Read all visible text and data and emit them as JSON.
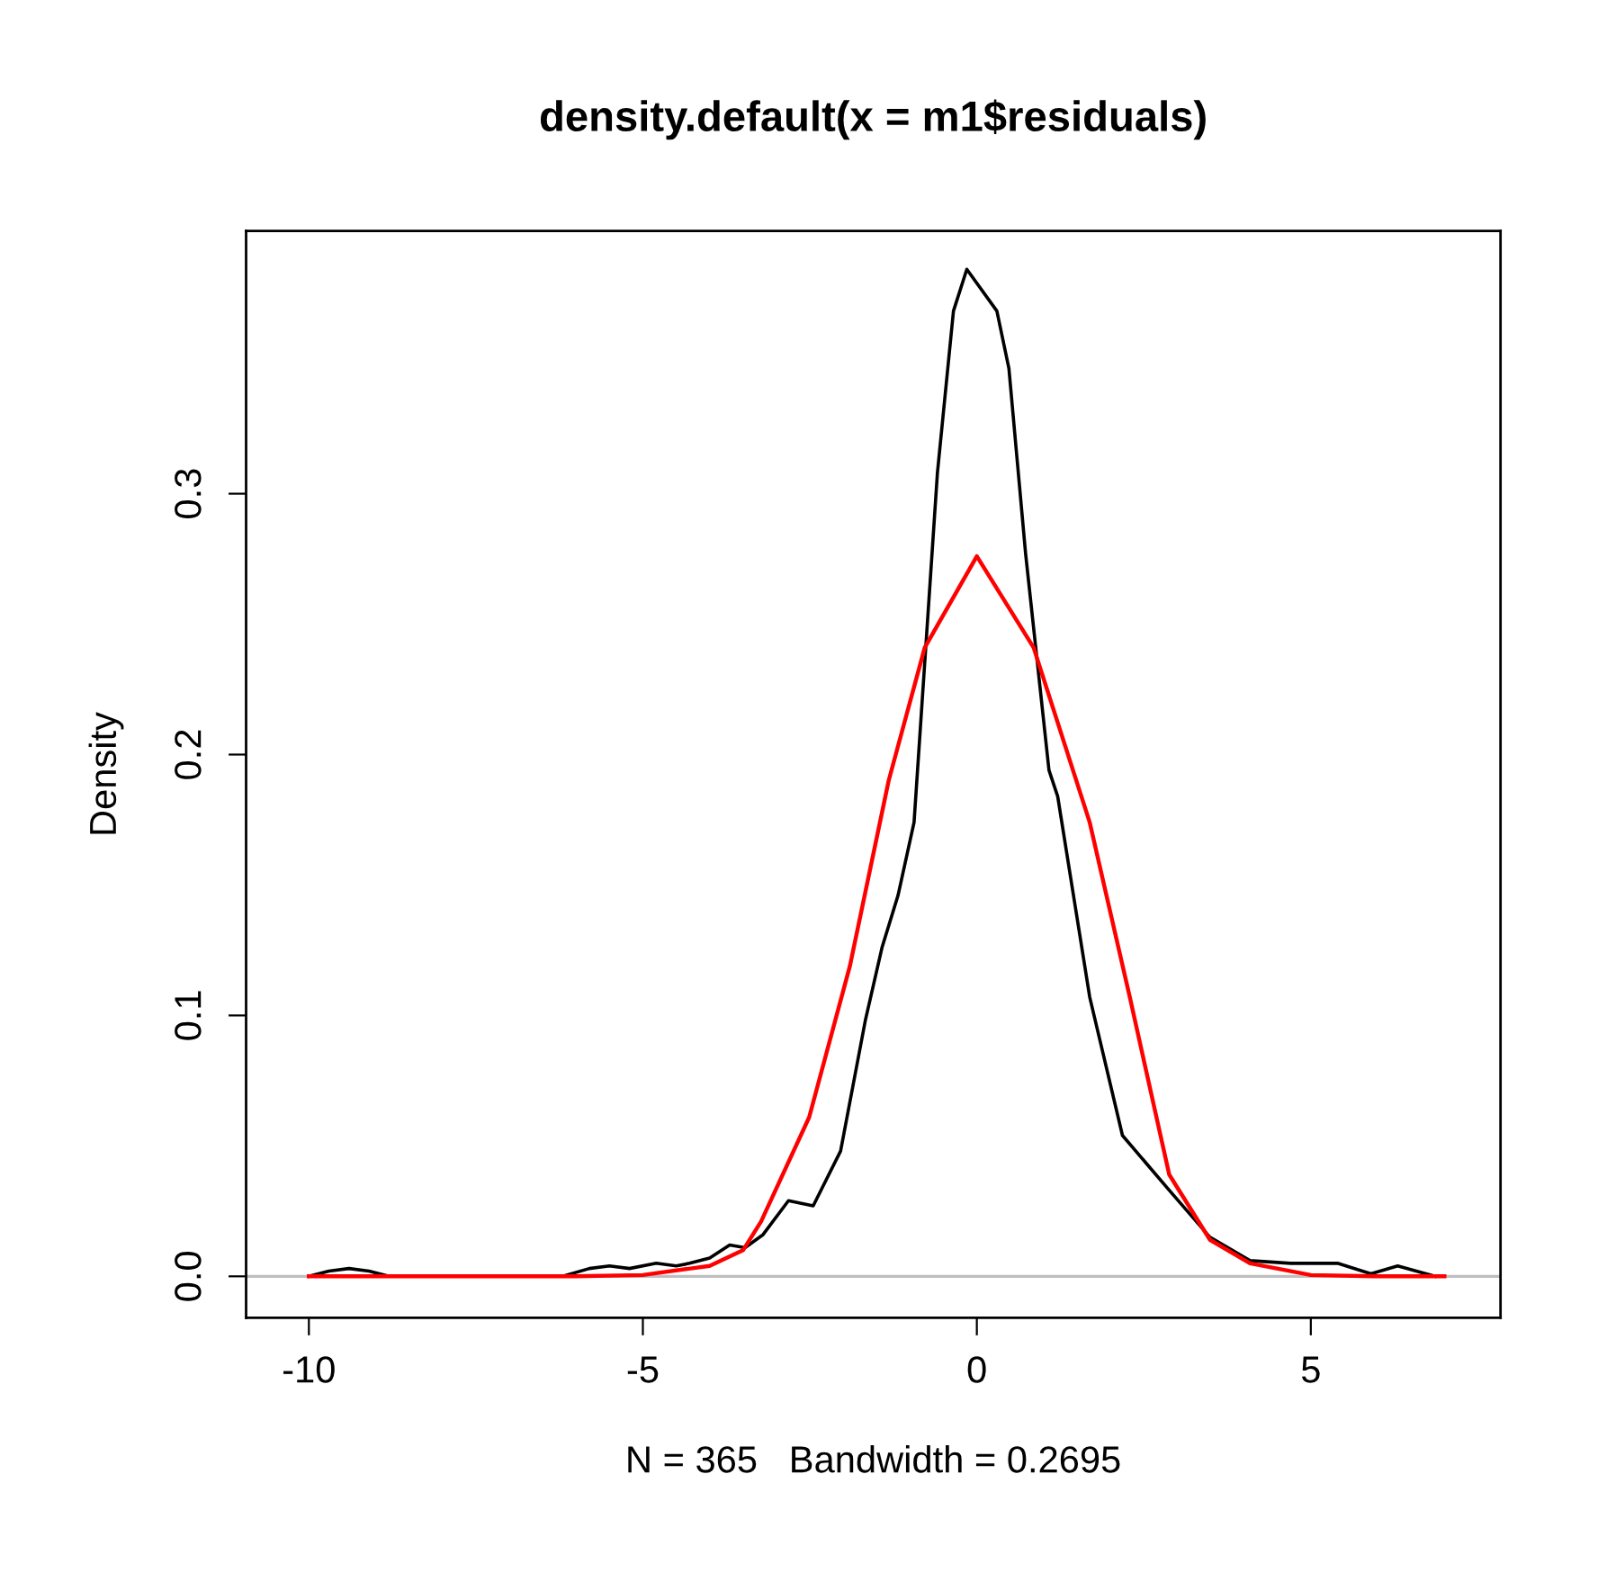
{
  "chart_data": {
    "type": "line",
    "title": "density.default(x = m1$residuals)",
    "xlabel": "N = 365   Bandwidth = 0.2695",
    "ylabel": "Density",
    "xlim": [
      -10.94,
      7.84
    ],
    "ylim": [
      -0.0159,
      0.4007
    ],
    "xticks": [
      {
        "value": -10,
        "label": "-10"
      },
      {
        "value": -5,
        "label": "-5"
      },
      0,
      5
    ],
    "yticks": [
      {
        "value": 0,
        "label": "0.0"
      },
      0.1,
      0.2,
      0.3
    ],
    "grid": false,
    "legend": false,
    "marker": "none",
    "line_style": "solid",
    "ref_lines": [
      {
        "axis": "y",
        "value": 0,
        "color": "#bebebe"
      }
    ],
    "series": [
      {
        "color": "#000000",
        "x": [
          -10.0,
          -9.7,
          -9.4,
          -9.1,
          -8.8,
          -7.5,
          -6.2,
          -5.8,
          -5.5,
          -5.2,
          -4.8,
          -4.5,
          -4.3,
          -4.0,
          -3.7,
          -3.47,
          -3.2,
          -2.82,
          -2.45,
          -2.04,
          -1.67,
          -1.42,
          -1.18,
          -0.94,
          -0.59,
          -0.35,
          -0.15,
          0.3,
          0.48,
          0.73,
          1.08,
          1.21,
          1.69,
          2.18,
          2.88,
          3.49,
          4.09,
          4.7,
          5.4,
          5.9,
          6.3,
          6.86
        ],
        "values": [
          0,
          0.002,
          0.003,
          0.002,
          0,
          0,
          0,
          0.003,
          0.004,
          0.003,
          0.005,
          0.004,
          0.005,
          0.007,
          0.012,
          0.011,
          0.016,
          0.029,
          0.027,
          0.048,
          0.098,
          0.126,
          0.146,
          0.174,
          0.308,
          0.37,
          0.386,
          0.37,
          0.348,
          0.277,
          0.194,
          0.184,
          0.107,
          0.054,
          0.033,
          0.015,
          0.006,
          0.005,
          0.005,
          0.001,
          0.004,
          0
        ]
      },
      {
        "color": "#ff0000",
        "x": [
          -10.0,
          -6.0,
          -5.0,
          -4.0,
          -3.5,
          -3.23,
          -2.51,
          -1.9,
          -1.32,
          -0.78,
          0.0,
          0.85,
          1.69,
          2.29,
          2.88,
          3.49,
          4.09,
          5.0,
          6.0,
          7.0
        ],
        "values": [
          0,
          0,
          0.0005,
          0.004,
          0.01,
          0.021,
          0.061,
          0.119,
          0.19,
          0.241,
          0.276,
          0.241,
          0.174,
          0.107,
          0.039,
          0.014,
          0.005,
          0.0005,
          0,
          0
        ]
      }
    ]
  }
}
